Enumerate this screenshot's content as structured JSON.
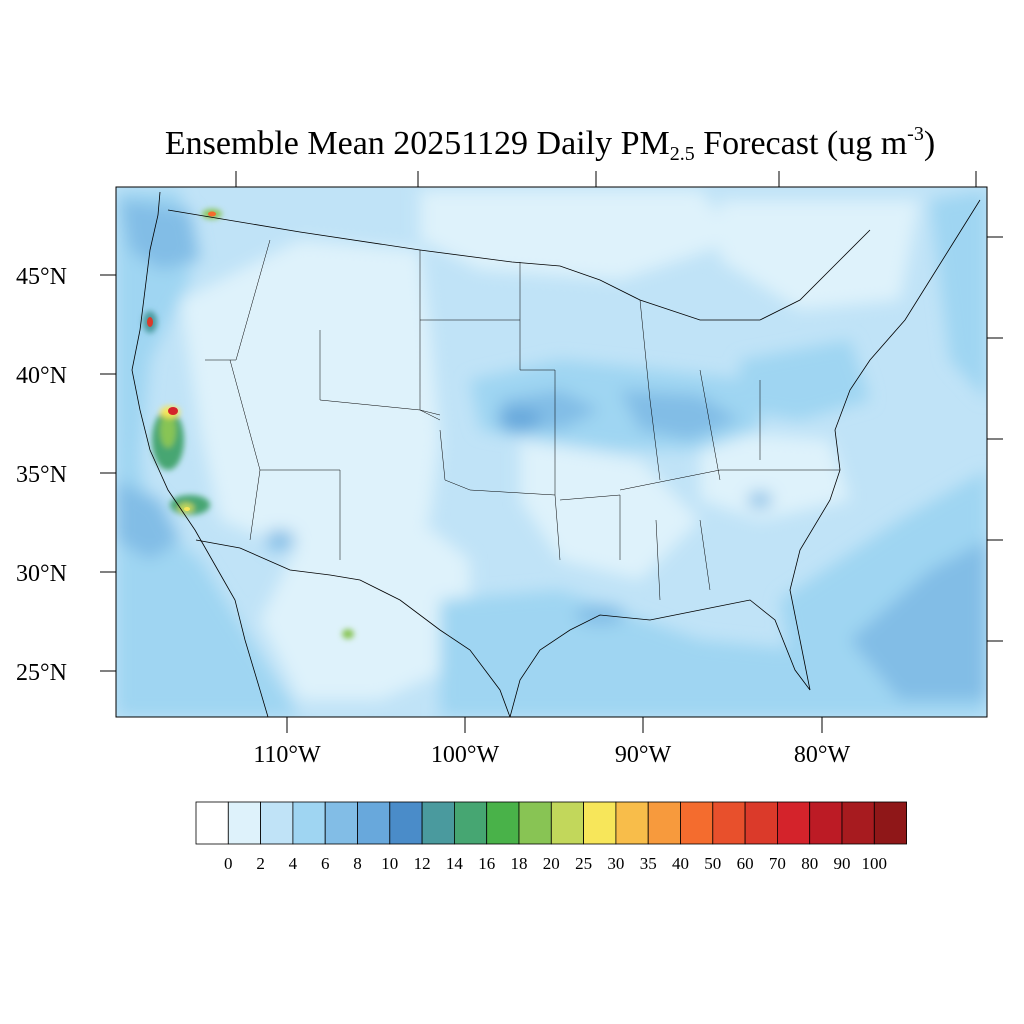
{
  "title": {
    "main": "Ensemble Mean 20251129 Daily PM",
    "subscript": "2.5",
    "rest": " Forecast (ug m",
    "superscript": "-3",
    "close": ")"
  },
  "map": {
    "region": "Contiguous United States",
    "projection": "Lambert conformal",
    "lat_labels": [
      "45°N",
      "40°N",
      "35°N",
      "30°N",
      "25°N"
    ],
    "lon_labels": [
      "110°W",
      "100°W",
      "90°W",
      "80°W"
    ],
    "background_level": "2-6 ug m-3",
    "hotspots": [
      {
        "location": "Northern California (Sacramento Valley)",
        "level": "60-80"
      },
      {
        "location": "Southern Oregon",
        "level": "40-70"
      },
      {
        "location": "Southern California (Los Angeles basin)",
        "level": "25-30"
      },
      {
        "location": "Northern Washington / British Columbia border",
        "level": "40-70"
      },
      {
        "location": "Northern Mexico (Chihuahua)",
        "level": "18-30"
      }
    ]
  },
  "colorbar": {
    "levels": [
      "0",
      "2",
      "4",
      "6",
      "8",
      "10",
      "12",
      "14",
      "16",
      "18",
      "20",
      "25",
      "30",
      "35",
      "40",
      "50",
      "60",
      "70",
      "80",
      "90",
      "100"
    ],
    "colors": [
      "#ffffff",
      "#def2fb",
      "#c0e3f7",
      "#9fd5f2",
      "#82bde6",
      "#68a8dc",
      "#4a8cc9",
      "#4a9a9e",
      "#46a672",
      "#49b249",
      "#88c454",
      "#c2d75b",
      "#f7e65a",
      "#f8bd4a",
      "#f79a3d",
      "#f46c2e",
      "#e8502c",
      "#db3a2a",
      "#d4232b",
      "#bc1b25",
      "#a71b1f",
      "#8f1718"
    ]
  }
}
